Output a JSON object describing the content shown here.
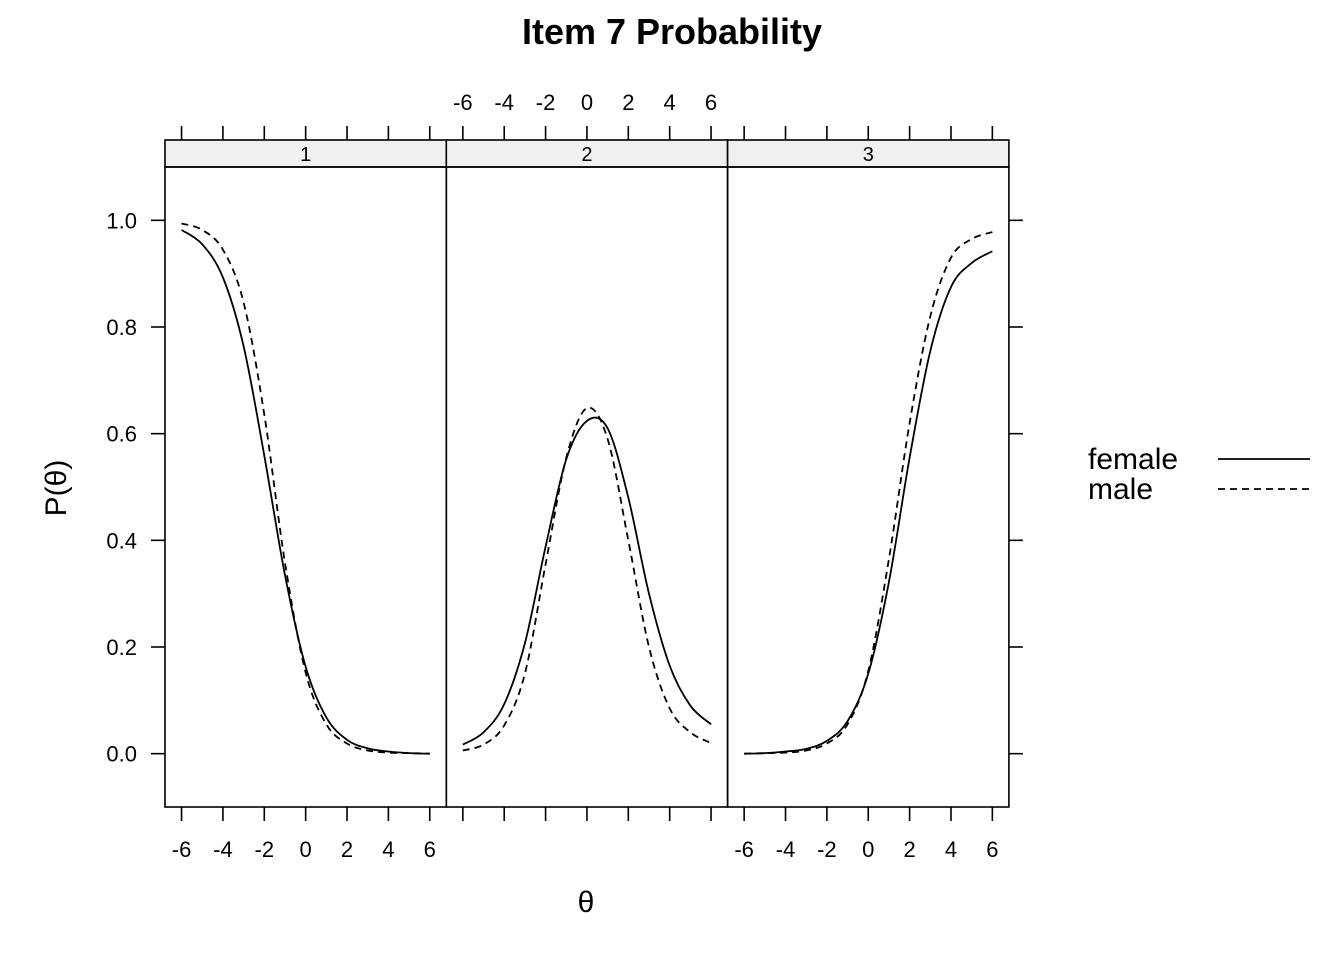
{
  "chart_data": {
    "type": "line",
    "title": "Item 7 Probability",
    "xlabel": "θ",
    "ylabel": "P(θ)",
    "xlim": [
      -6.8,
      6.8
    ],
    "ylim": [
      -0.1,
      1.1
    ],
    "x_ticks": [
      -6,
      -4,
      -2,
      0,
      2,
      4,
      6
    ],
    "y_ticks": [
      0.0,
      0.2,
      0.4,
      0.6,
      0.8,
      1.0
    ],
    "y_tick_labels": [
      "0.0",
      "0.2",
      "0.4",
      "0.6",
      "0.8",
      "1.0"
    ],
    "legend": {
      "position": "right",
      "entries": [
        "female",
        "male"
      ]
    },
    "x": [
      -6,
      -5,
      -4,
      -3,
      -2,
      -1,
      0,
      1,
      2,
      3,
      4,
      5,
      6
    ],
    "panels": [
      {
        "label": "1",
        "series": [
          {
            "name": "female",
            "line": "solid",
            "values": [
              0.982,
              0.955,
              0.893,
              0.764,
              0.559,
              0.335,
              0.163,
              0.068,
              0.026,
              0.01,
              0.004,
              0.001,
              0.0
            ]
          },
          {
            "name": "male",
            "line": "dashed",
            "values": [
              0.994,
              0.982,
              0.945,
              0.846,
              0.636,
              0.358,
              0.152,
              0.055,
              0.019,
              0.006,
              0.002,
              0.001,
              0.0
            ]
          }
        ]
      },
      {
        "label": "2",
        "series": [
          {
            "name": "female",
            "line": "solid",
            "values": [
              0.017,
              0.04,
              0.093,
              0.207,
              0.388,
              0.552,
              0.624,
              0.61,
              0.48,
              0.3,
              0.165,
              0.09,
              0.055
            ]
          },
          {
            "name": "male",
            "line": "dashed",
            "values": [
              0.006,
              0.017,
              0.053,
              0.15,
              0.355,
              0.555,
              0.648,
              0.59,
              0.4,
              0.2,
              0.085,
              0.04,
              0.02
            ]
          }
        ]
      },
      {
        "label": "3",
        "series": [
          {
            "name": "female",
            "line": "solid",
            "values": [
              0.0,
              0.001,
              0.004,
              0.009,
              0.024,
              0.061,
              0.15,
              0.322,
              0.555,
              0.755,
              0.875,
              0.92,
              0.942
            ]
          },
          {
            "name": "male",
            "line": "dashed",
            "values": [
              0.0,
              0.001,
              0.002,
              0.006,
              0.019,
              0.055,
              0.155,
              0.365,
              0.62,
              0.82,
              0.93,
              0.965,
              0.978
            ]
          }
        ]
      }
    ]
  }
}
